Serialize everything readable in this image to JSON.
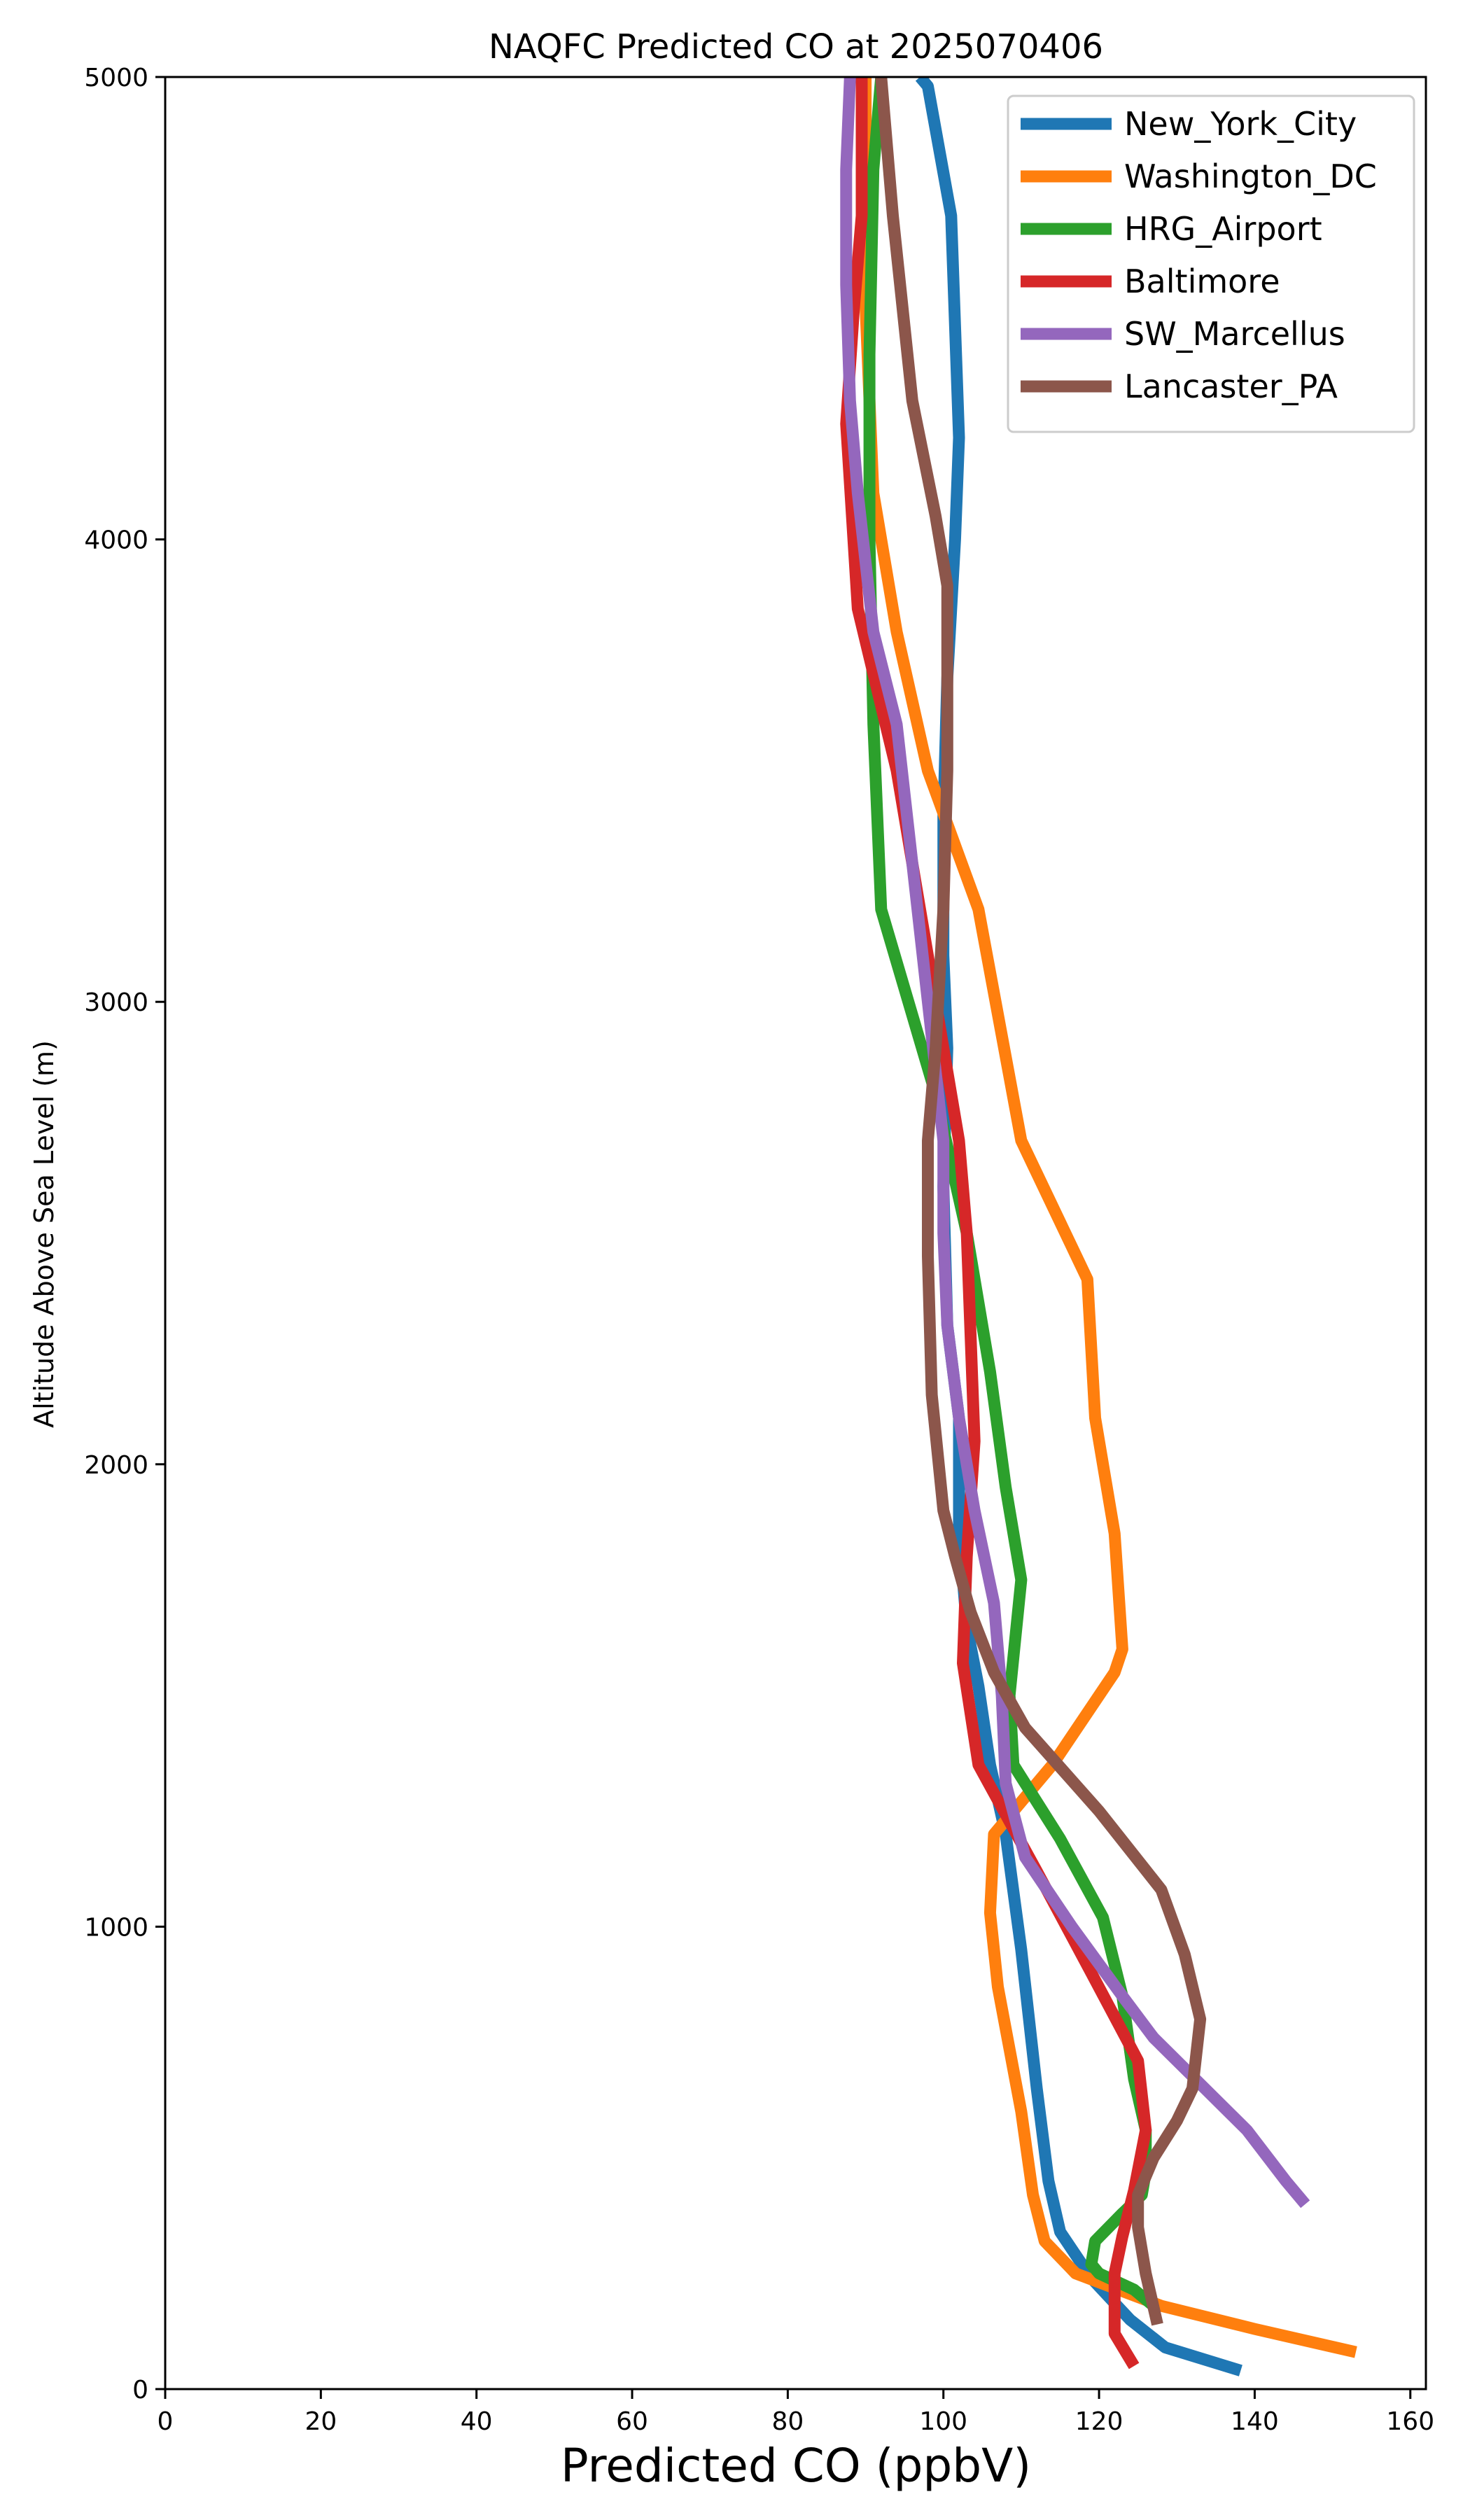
{
  "chart_data": {
    "type": "line",
    "title": "NAQFC Predicted CO at 2025070406",
    "xlabel": "Predicted CO (ppbV)",
    "ylabel": "Altitude Above Sea Level (m)",
    "xlim": [
      0,
      162
    ],
    "ylim": [
      0,
      5000
    ],
    "xticks": [
      "0",
      "20",
      "40",
      "60",
      "80",
      "100",
      "120",
      "140",
      "160"
    ],
    "xtick_values": [
      0,
      20,
      40,
      60,
      80,
      100,
      120,
      140,
      160
    ],
    "yticks": [
      "0",
      "1000",
      "2000",
      "3000",
      "4000",
      "5000"
    ],
    "ytick_values": [
      0,
      1000,
      2000,
      3000,
      4000,
      5000
    ],
    "grid": false,
    "legend_position": "top-right",
    "series": [
      {
        "name": "New_York_City",
        "color": "#1f77b4",
        "points": [
          [
            138.2,
            40
          ],
          [
            128.5,
            90
          ],
          [
            124,
            150
          ],
          [
            119,
            240
          ],
          [
            115,
            340
          ],
          [
            113.5,
            450
          ],
          [
            112,
            650
          ],
          [
            110,
            950
          ],
          [
            108,
            1200
          ],
          [
            106,
            1350
          ],
          [
            104.5,
            1520
          ],
          [
            103,
            1650
          ],
          [
            102,
            1850
          ],
          [
            102,
            2100
          ],
          [
            100.5,
            2300
          ],
          [
            100,
            2600
          ],
          [
            100.5,
            2900
          ],
          [
            100,
            3100
          ],
          [
            100,
            3400
          ],
          [
            100.5,
            3700
          ],
          [
            101.5,
            4000
          ],
          [
            102,
            4220
          ],
          [
            101,
            4700
          ],
          [
            98,
            4980
          ],
          [
            97,
            5000
          ]
        ]
      },
      {
        "name": "Washington_DC",
        "color": "#ff7f0e",
        "points": [
          [
            153,
            80
          ],
          [
            140,
            130
          ],
          [
            128,
            180
          ],
          [
            117,
            250
          ],
          [
            113,
            320
          ],
          [
            111.5,
            420
          ],
          [
            110,
            600
          ],
          [
            107,
            870
          ],
          [
            106,
            1030
          ],
          [
            106.5,
            1200
          ],
          [
            114,
            1350
          ],
          [
            122,
            1550
          ],
          [
            123,
            1600
          ],
          [
            122,
            1850
          ],
          [
            119.5,
            2100
          ],
          [
            118.5,
            2400
          ],
          [
            110,
            2700
          ],
          [
            104.5,
            3200
          ],
          [
            98,
            3500
          ],
          [
            94,
            3800
          ],
          [
            91,
            4100
          ],
          [
            90,
            4500
          ],
          [
            90,
            4900
          ],
          [
            90,
            5000
          ]
        ]
      },
      {
        "name": "HRG_Airport",
        "color": "#2ca02c",
        "points": [
          [
            127,
            180
          ],
          [
            124.5,
            215
          ],
          [
            120,
            250
          ],
          [
            119,
            270
          ],
          [
            119.5,
            320
          ],
          [
            123,
            380
          ],
          [
            125.5,
            420
          ],
          [
            126,
            470
          ],
          [
            126,
            560
          ],
          [
            124.5,
            670
          ],
          [
            123,
            850
          ],
          [
            120.5,
            1020
          ],
          [
            115,
            1190
          ],
          [
            109,
            1350
          ],
          [
            108.5,
            1500
          ],
          [
            110,
            1750
          ],
          [
            108,
            1950
          ],
          [
            106,
            2200
          ],
          [
            103,
            2500
          ],
          [
            99,
            2800
          ],
          [
            92,
            3200
          ],
          [
            91,
            3600
          ],
          [
            90.5,
            4000
          ],
          [
            90.5,
            4400
          ],
          [
            91,
            4800
          ],
          [
            92,
            5000
          ]
        ]
      },
      {
        "name": "Baltimore",
        "color": "#d62728",
        "points": [
          [
            124.5,
            50
          ],
          [
            122,
            120
          ],
          [
            122,
            250
          ],
          [
            123,
            330
          ],
          [
            124.5,
            430
          ],
          [
            126,
            560
          ],
          [
            125,
            710
          ],
          [
            119,
            900
          ],
          [
            112,
            1120
          ],
          [
            104.5,
            1350
          ],
          [
            102.5,
            1570
          ],
          [
            103,
            1800
          ],
          [
            104,
            2050
          ],
          [
            103,
            2500
          ],
          [
            102,
            2700
          ],
          [
            100,
            2900
          ],
          [
            97,
            3200
          ],
          [
            94,
            3500
          ],
          [
            89,
            3850
          ],
          [
            87.5,
            4250
          ],
          [
            88.5,
            4500
          ],
          [
            89.5,
            4700
          ],
          [
            89.5,
            5000
          ]
        ]
      },
      {
        "name": "SW_Marcellus",
        "color": "#9467bd",
        "points": [
          [
            146.5,
            400
          ],
          [
            144,
            450
          ],
          [
            139,
            560
          ],
          [
            133,
            660
          ],
          [
            127,
            760
          ],
          [
            123,
            850
          ],
          [
            116.5,
            1000
          ],
          [
            110.5,
            1150
          ],
          [
            108,
            1310
          ],
          [
            107.5,
            1500
          ],
          [
            106.5,
            1700
          ],
          [
            104,
            1900
          ],
          [
            102,
            2100
          ],
          [
            100.5,
            2300
          ],
          [
            100,
            2500
          ],
          [
            100,
            2700
          ],
          [
            98,
            3000
          ],
          [
            96,
            3300
          ],
          [
            94,
            3600
          ],
          [
            91,
            3800
          ],
          [
            89,
            4100
          ],
          [
            88,
            4300
          ],
          [
            87.5,
            4550
          ],
          [
            87.5,
            4800
          ],
          [
            88,
            5000
          ]
        ]
      },
      {
        "name": "Lancaster_PA",
        "color": "#8c564b",
        "points": [
          [
            127.5,
            140
          ],
          [
            126,
            250
          ],
          [
            125,
            350
          ],
          [
            125,
            420
          ],
          [
            127,
            500
          ],
          [
            130,
            580
          ],
          [
            132,
            650
          ],
          [
            133,
            800
          ],
          [
            131,
            940
          ],
          [
            128,
            1080
          ],
          [
            120,
            1250
          ],
          [
            110.5,
            1430
          ],
          [
            106.5,
            1550
          ],
          [
            103.5,
            1680
          ],
          [
            101.5,
            1800
          ],
          [
            100,
            1900
          ],
          [
            98.5,
            2150
          ],
          [
            98,
            2450
          ],
          [
            98,
            2700
          ],
          [
            99,
            2900
          ],
          [
            100,
            3200
          ],
          [
            100.5,
            3500
          ],
          [
            100.5,
            3900
          ],
          [
            99,
            4050
          ],
          [
            96,
            4300
          ],
          [
            93.5,
            4700
          ],
          [
            92,
            5000
          ]
        ]
      }
    ]
  }
}
